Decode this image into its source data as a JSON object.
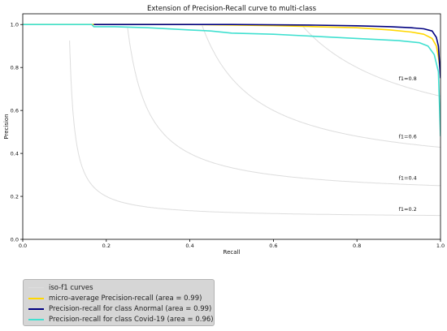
{
  "chart_data": {
    "type": "line",
    "title": "Extension of Precision-Recall curve to multi-class",
    "xlabel": "Recall",
    "ylabel": "Precision",
    "xlim": [
      0.0,
      1.0
    ],
    "ylim": [
      0.0,
      1.05
    ],
    "x_ticks": [
      "0.0",
      "0.2",
      "0.4",
      "0.6",
      "0.8",
      "1.0"
    ],
    "y_ticks": [
      "0.0",
      "0.2",
      "0.4",
      "0.6",
      "0.8",
      "1.0"
    ],
    "grid": false,
    "legend_position": "below-left",
    "iso_f1": {
      "name": "iso-f1 curves",
      "color": "#dddddd",
      "levels": [
        0.2,
        0.4,
        0.6,
        0.8
      ],
      "labels": [
        "f1=0.2",
        "f1=0.4",
        "f1=0.6",
        "f1=0.8"
      ]
    },
    "series": [
      {
        "name": "micro-average Precision-recall (area = 0.99)",
        "color": "#ffd700",
        "points": [
          [
            0.0,
            1.0
          ],
          [
            0.2,
            1.0
          ],
          [
            0.4,
            1.0
          ],
          [
            0.6,
            0.995
          ],
          [
            0.7,
            0.99
          ],
          [
            0.8,
            0.985
          ],
          [
            0.88,
            0.975
          ],
          [
            0.93,
            0.965
          ],
          [
            0.96,
            0.955
          ],
          [
            0.98,
            0.935
          ],
          [
            0.99,
            0.9
          ],
          [
            0.995,
            0.85
          ],
          [
            1.0,
            0.78
          ]
        ]
      },
      {
        "name": "Precision-recall for class Anormal (area = 0.99)",
        "color": "#000080",
        "points": [
          [
            0.17,
            1.0
          ],
          [
            0.3,
            1.0
          ],
          [
            0.5,
            1.0
          ],
          [
            0.7,
            0.997
          ],
          [
            0.8,
            0.994
          ],
          [
            0.88,
            0.99
          ],
          [
            0.93,
            0.985
          ],
          [
            0.96,
            0.98
          ],
          [
            0.98,
            0.97
          ],
          [
            0.99,
            0.94
          ],
          [
            0.995,
            0.9
          ],
          [
            1.0,
            0.75
          ]
        ]
      },
      {
        "name": "Precision-recall for class Covid-19 (area = 0.96)",
        "color": "#40e0d0",
        "points": [
          [
            0.0,
            1.0
          ],
          [
            0.165,
            1.0
          ],
          [
            0.17,
            0.99
          ],
          [
            0.22,
            0.99
          ],
          [
            0.3,
            0.985
          ],
          [
            0.4,
            0.975
          ],
          [
            0.45,
            0.97
          ],
          [
            0.5,
            0.96
          ],
          [
            0.6,
            0.955
          ],
          [
            0.7,
            0.945
          ],
          [
            0.8,
            0.935
          ],
          [
            0.9,
            0.925
          ],
          [
            0.95,
            0.915
          ],
          [
            0.97,
            0.9
          ],
          [
            0.985,
            0.86
          ],
          [
            0.995,
            0.78
          ],
          [
            1.0,
            0.48
          ]
        ]
      }
    ]
  }
}
